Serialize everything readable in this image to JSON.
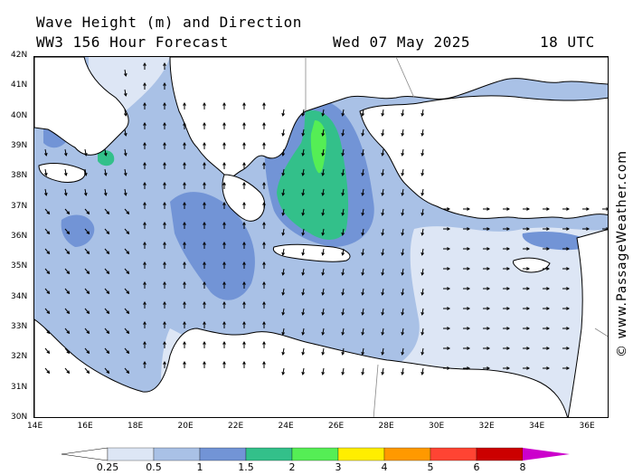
{
  "header": {
    "title": "Wave Height (m) and Direction",
    "model": "WW3 156 Hour Forecast",
    "date": "Wed 07 May 2025",
    "time": "18 UTC"
  },
  "credit": "© www.PassageWeather.com",
  "axes": {
    "lat_labels": [
      "42N",
      "41N",
      "40N",
      "39N",
      "38N",
      "37N",
      "36N",
      "35N",
      "34N",
      "33N",
      "32N",
      "31N",
      "30N"
    ],
    "lon_labels": [
      "14E",
      "16E",
      "18E",
      "20E",
      "22E",
      "24E",
      "26E",
      "28E",
      "30E",
      "32E",
      "34E",
      "36E"
    ]
  },
  "colorbar": {
    "labels": [
      "0.25",
      "0.5",
      "1",
      "1.5",
      "2",
      "3",
      "4",
      "5",
      "6",
      "8"
    ],
    "colors": [
      "#dde6f5",
      "#a9c1e6",
      "#7294d6",
      "#33c08a",
      "#55ee55",
      "#ffee00",
      "#ff9900",
      "#ff4433",
      "#cc0000",
      "#cc00cc"
    ]
  },
  "palette": {
    "sea_light": "#dde6f5",
    "sea_mid": "#a9c1e6",
    "sea_dark": "#7294d6",
    "teal": "#33c08a",
    "green": "#55ee55",
    "coast": "#000000",
    "border": "#888888"
  }
}
